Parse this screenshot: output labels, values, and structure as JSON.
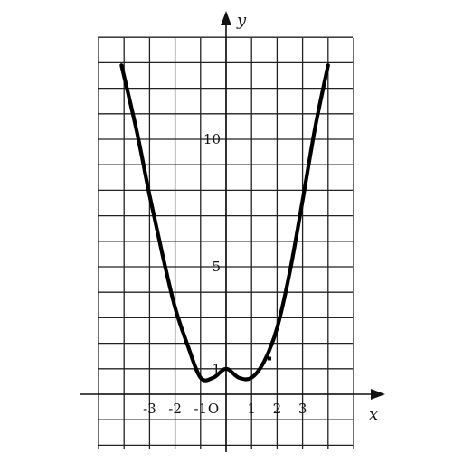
{
  "chart_data": {
    "type": "line",
    "title": "",
    "xlabel": "x",
    "ylabel": "y",
    "xlim": [
      -4,
      4
    ],
    "ylim": [
      -2,
      14
    ],
    "grid": true,
    "x_ticks": [
      {
        "value": -3,
        "label": "-3"
      },
      {
        "value": -2,
        "label": "-2"
      },
      {
        "value": -1,
        "label": "-1"
      },
      {
        "value": 1,
        "label": "1"
      },
      {
        "value": 2,
        "label": "2"
      },
      {
        "value": 3,
        "label": "3"
      }
    ],
    "y_ticks": [
      {
        "value": 1,
        "label": "1"
      },
      {
        "value": 5,
        "label": "5"
      },
      {
        "value": 10,
        "label": "10"
      }
    ],
    "origin_label": "O",
    "series": [
      {
        "name": "",
        "x": [
          -4.1,
          -3.5,
          -3,
          -2.5,
          -2,
          -1.5,
          -1,
          -0.5,
          0,
          0.5,
          1,
          1.5,
          2,
          2.5,
          3,
          3.5,
          4.0
        ],
        "y": [
          12.9,
          10.3,
          7.8,
          5.5,
          3.4,
          1.9,
          0.65,
          0.65,
          1.0,
          0.65,
          0.65,
          1.3,
          2.6,
          4.8,
          7.6,
          10.5,
          12.9
        ]
      }
    ],
    "marker_points": [
      {
        "x": 1.7,
        "y": 1.4
      }
    ]
  }
}
